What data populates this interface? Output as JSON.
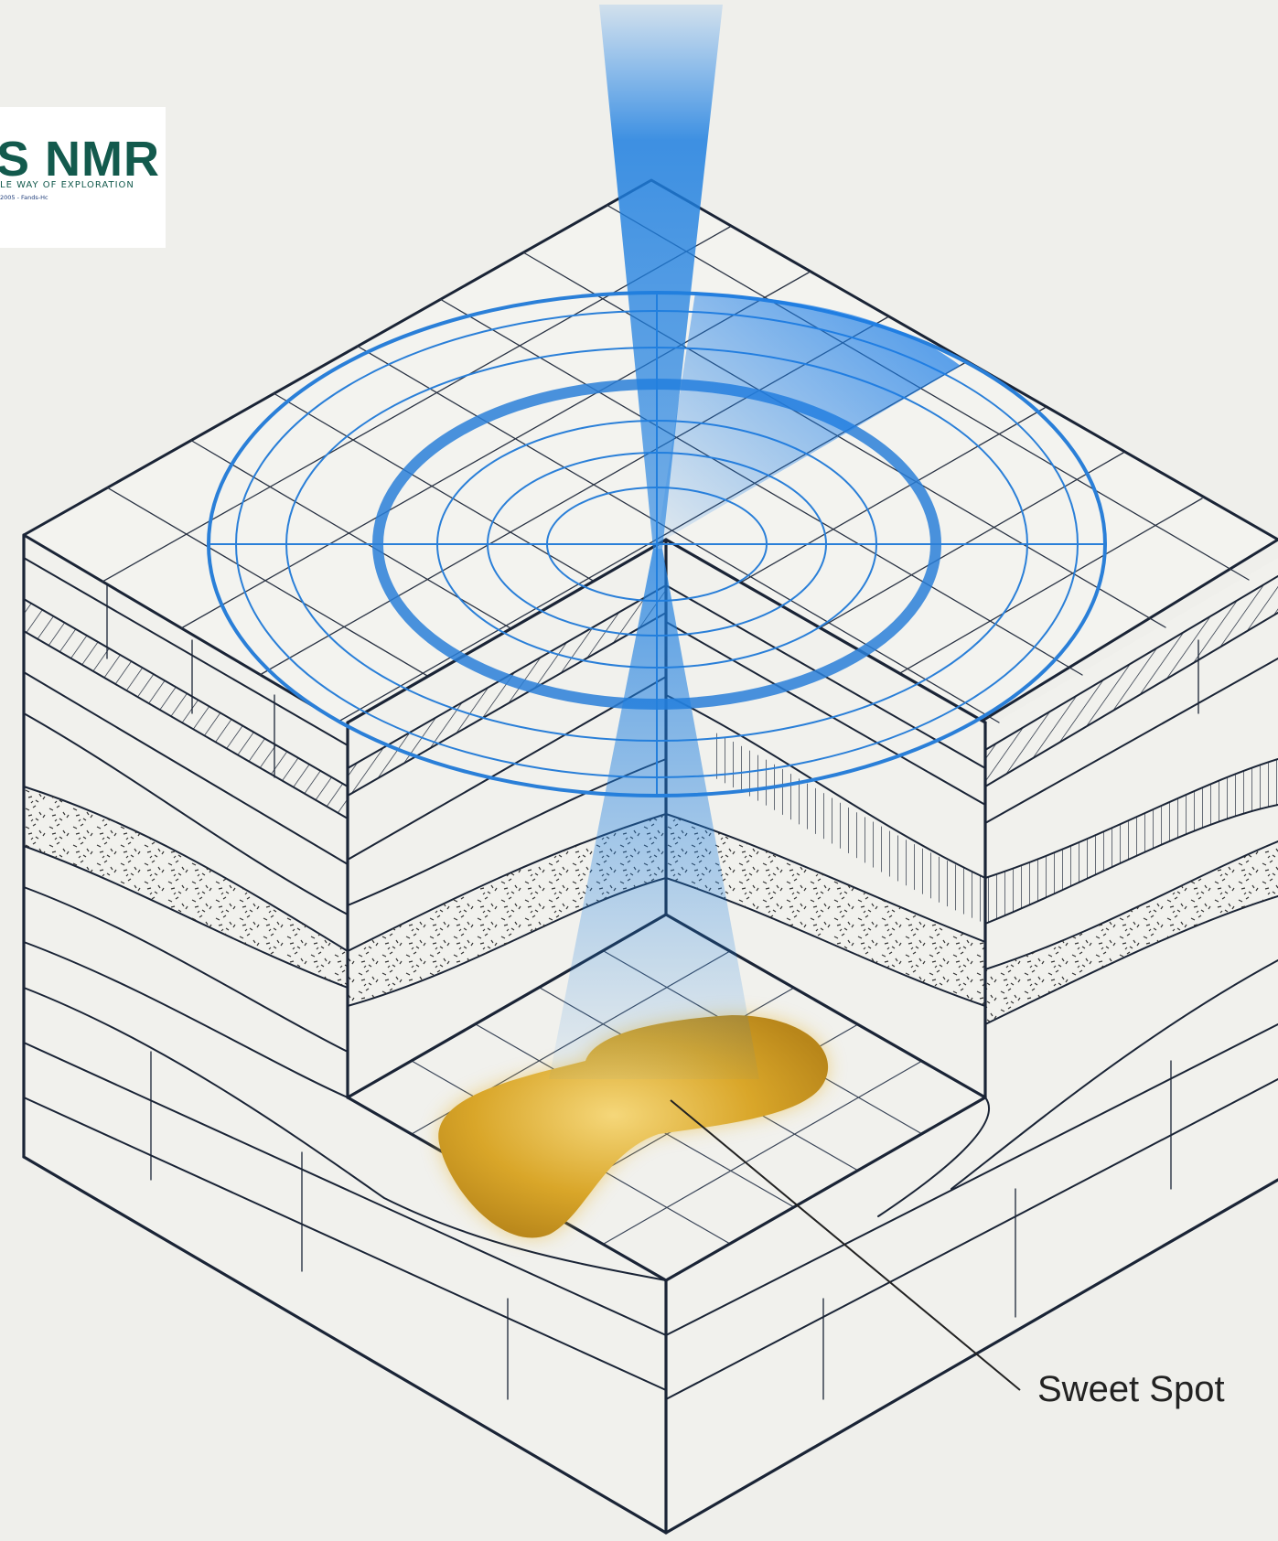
{
  "logo": {
    "main": "S NMR",
    "tagline": "LE WAY OF EXPLORATION",
    "subline": "2005 - Fands-Hc",
    "color": "#135a4d"
  },
  "callout": {
    "label": "Sweet Spot"
  },
  "colors": {
    "background": "#efefeb",
    "line": "#1a2436",
    "beam": "#1e7fe0",
    "sweet_spot": "#d9a629"
  }
}
